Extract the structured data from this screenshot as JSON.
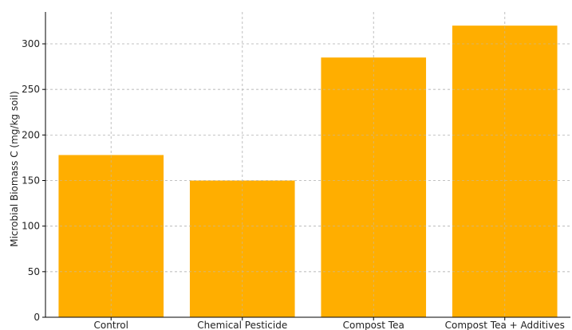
{
  "chart_data": {
    "type": "bar",
    "title": "",
    "xlabel": "",
    "ylabel": "Microbial Biomass C (mg/kg soil)",
    "categories": [
      "Control",
      "Chemical Pesticide",
      "Compost Tea",
      "Compost Tea + Additives"
    ],
    "values": [
      178,
      150,
      285,
      320
    ],
    "ylim": [
      0,
      335
    ],
    "yticks": [
      0,
      50,
      100,
      150,
      200,
      250,
      300
    ],
    "grid": true,
    "bar_color": "#FFAE00",
    "grid_color": "#BBBBBB",
    "axis_color": "#000000"
  }
}
